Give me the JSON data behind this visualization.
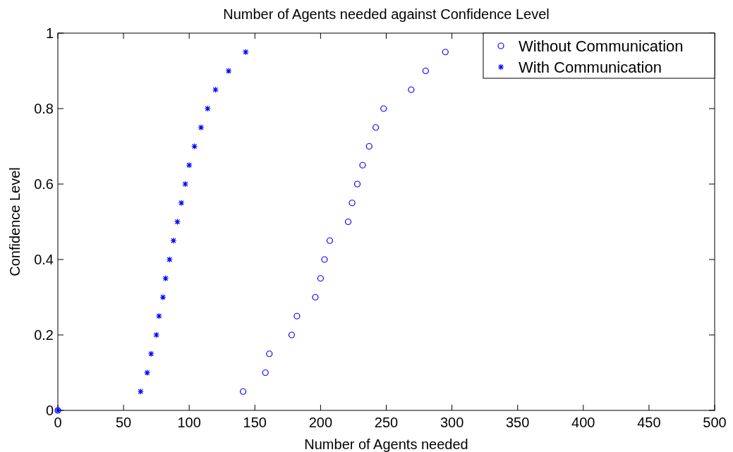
{
  "chart_data": {
    "type": "scatter",
    "title": "Number of Agents needed against Confidence Level",
    "xlabel": "Number of Agents needed",
    "ylabel": "Confidence Level",
    "xlim": [
      0,
      500
    ],
    "xticks": [
      0,
      50,
      100,
      150,
      200,
      250,
      300,
      350,
      400,
      450,
      500
    ],
    "ylim": [
      0,
      1
    ],
    "yticks": [
      0,
      0.2,
      0.4,
      0.6,
      0.8,
      1
    ],
    "grid": false,
    "legend": "top right",
    "series": [
      {
        "name": "Without Communication",
        "color": "#0000ff",
        "marker": "circle",
        "x": [
          0,
          141,
          158,
          161,
          178,
          182,
          196,
          200,
          203,
          207,
          221,
          224,
          228,
          232,
          237,
          242,
          248,
          269,
          280,
          295
        ],
        "values": [
          0,
          0.05,
          0.1,
          0.15,
          0.2,
          0.25,
          0.3,
          0.35,
          0.4,
          0.45,
          0.5,
          0.55,
          0.6,
          0.65,
          0.7,
          0.75,
          0.8,
          0.85,
          0.9,
          0.95
        ]
      },
      {
        "name": "With Communication",
        "color": "#0000ff",
        "marker": "cross",
        "x": [
          0,
          63,
          68,
          71,
          75,
          77,
          80,
          82,
          85,
          88,
          91,
          94,
          97,
          100,
          104,
          109,
          114,
          120,
          130,
          143
        ],
        "values": [
          0,
          0.05,
          0.1,
          0.15,
          0.2,
          0.25,
          0.3,
          0.35,
          0.4,
          0.45,
          0.5,
          0.55,
          0.6,
          0.65,
          0.7,
          0.75,
          0.8,
          0.85,
          0.9,
          0.95
        ]
      }
    ]
  }
}
